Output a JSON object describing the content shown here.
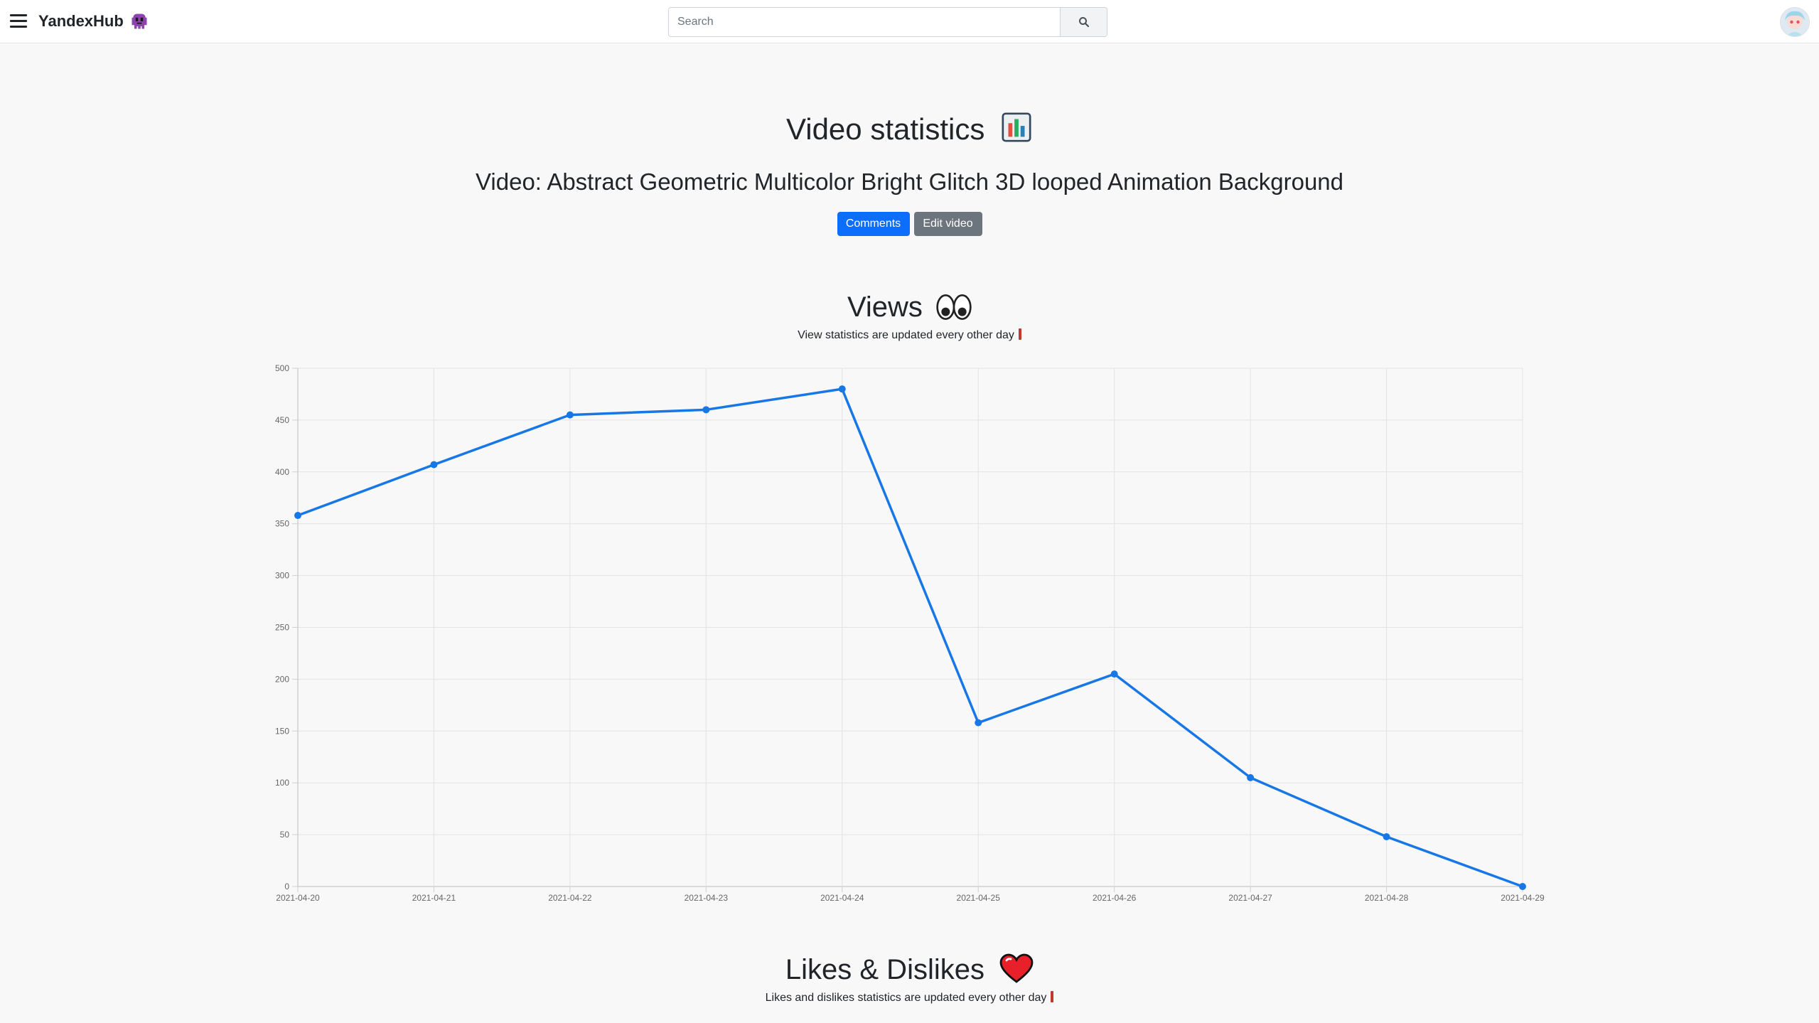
{
  "navbar": {
    "brand": "YandexHub",
    "search_placeholder": "Search",
    "icons": {
      "menu": "hamburger-menu-icon",
      "logo": "alien-monster-icon",
      "search": "magnifier-icon",
      "avatar": "user-avatar"
    }
  },
  "page": {
    "title": "Video statistics",
    "title_emoji": "bar-chart-icon",
    "video_title": "Video: Abstract Geometric Multicolor Bright Glitch 3D looped Animation Background",
    "buttons": {
      "comments": "Comments",
      "edit": "Edit video"
    }
  },
  "views_section": {
    "title": "Views",
    "title_emoji": "eyes-icon",
    "note": "View statistics are updated every other day"
  },
  "likes_section": {
    "title": "Likes & Dislikes",
    "title_emoji": "heart-icon",
    "note": "Likes and dislikes statistics are updated every other day"
  },
  "chart_data": {
    "type": "line",
    "categories": [
      "2021-04-20",
      "2021-04-21",
      "2021-04-22",
      "2021-04-23",
      "2021-04-24",
      "2021-04-25",
      "2021-04-26",
      "2021-04-27",
      "2021-04-28",
      "2021-04-29"
    ],
    "values": [
      358,
      407,
      455,
      460,
      480,
      158,
      205,
      105,
      48,
      0
    ],
    "ylim": [
      0,
      500
    ],
    "yticks": [
      0,
      50,
      100,
      150,
      200,
      250,
      300,
      350,
      400,
      450,
      500
    ],
    "grid": true,
    "line_color": "#1877e6"
  }
}
